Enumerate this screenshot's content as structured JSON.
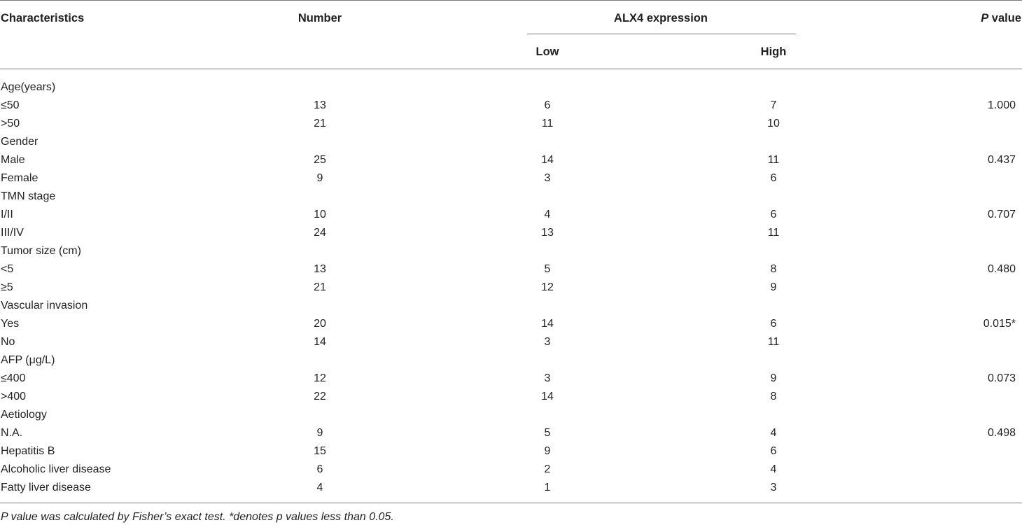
{
  "table": {
    "headers": {
      "characteristics": "Characteristics",
      "number": "Number",
      "expression_group": "ALX4 expression",
      "low": "Low",
      "high": "High",
      "p_italic": "P",
      "p_rest": " value"
    },
    "rows": [
      {
        "label": "Age(years)",
        "number": "",
        "low": "",
        "high": "",
        "p": ""
      },
      {
        "label": "≤50",
        "number": "13",
        "low": "6",
        "high": "7",
        "p": "1.000"
      },
      {
        "label": ">50",
        "number": "21",
        "low": "11",
        "high": "10",
        "p": ""
      },
      {
        "label": "Gender",
        "number": "",
        "low": "",
        "high": "",
        "p": ""
      },
      {
        "label": "Male",
        "number": "25",
        "low": "14",
        "high": "11",
        "p": "0.437"
      },
      {
        "label": "Female",
        "number": "9",
        "low": "3",
        "high": "6",
        "p": ""
      },
      {
        "label": "TMN stage",
        "number": "",
        "low": "",
        "high": "",
        "p": ""
      },
      {
        "label": "I/II",
        "number": "10",
        "low": "4",
        "high": "6",
        "p": "0.707"
      },
      {
        "label": "III/IV",
        "number": "24",
        "low": "13",
        "high": "11",
        "p": ""
      },
      {
        "label": "Tumor size (cm)",
        "number": "",
        "low": "",
        "high": "",
        "p": ""
      },
      {
        "label": "<5",
        "number": "13",
        "low": "5",
        "high": "8",
        "p": "0.480"
      },
      {
        "label": "≥5",
        "number": "21",
        "low": "12",
        "high": "9",
        "p": ""
      },
      {
        "label": "Vascular invasion",
        "number": "",
        "low": "",
        "high": "",
        "p": ""
      },
      {
        "label": "Yes",
        "number": "20",
        "low": "14",
        "high": "6",
        "p": "0.015*"
      },
      {
        "label": "No",
        "number": "14",
        "low": "3",
        "high": "11",
        "p": ""
      },
      {
        "label": "AFP (μg/L)",
        "number": "",
        "low": "",
        "high": "",
        "p": ""
      },
      {
        "label": "≤400",
        "number": "12",
        "low": "3",
        "high": "9",
        "p": "0.073"
      },
      {
        "label": ">400",
        "number": "22",
        "low": "14",
        "high": "8",
        "p": ""
      },
      {
        "label": "Aetiology",
        "number": "",
        "low": "",
        "high": "",
        "p": ""
      },
      {
        "label": "N.A.",
        "number": "9",
        "low": "5",
        "high": "4",
        "p": "0.498"
      },
      {
        "label": "Hepatitis B",
        "number": "15",
        "low": "9",
        "high": "6",
        "p": ""
      },
      {
        "label": "Alcoholic liver disease",
        "number": "6",
        "low": "2",
        "high": "4",
        "p": ""
      },
      {
        "label": "Fatty liver disease",
        "number": "4",
        "low": "1",
        "high": "3",
        "p": ""
      }
    ],
    "footnote": "P value was calculated by Fisher’s exact test. *denotes p values less than 0.05."
  }
}
